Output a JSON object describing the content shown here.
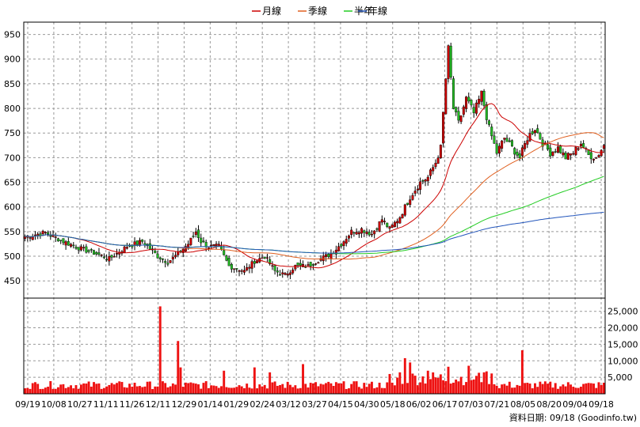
{
  "chart_data": [
    {
      "type": "candlestick",
      "legend": [
        "月線",
        "季線",
        "半年",
        "年線"
      ],
      "legend_placement": "top-center",
      "colors": {
        "month": "#cc0000",
        "quarter": "#e06020",
        "half": "#22cc22",
        "year": "#2255bb",
        "up": "#cc0000",
        "down": "#22bb22"
      },
      "x_tick_labels": [
        "09/19",
        "10/08",
        "10/27",
        "11/11",
        "11/26",
        "12/11",
        "12/29",
        "01/14",
        "01/29",
        "02/24",
        "03/12",
        "03/27",
        "04/15",
        "04/30",
        "05/18",
        "06/02",
        "06/17",
        "07/03",
        "07/21",
        "08/05",
        "08/20",
        "09/04",
        "09/18"
      ],
      "y_ticks": [
        450,
        500,
        550,
        600,
        650,
        700,
        750,
        800,
        850,
        900,
        950
      ],
      "ylim": [
        415,
        975
      ],
      "grid": true,
      "price_anchors": [
        {
          "i": 0,
          "c": 540
        },
        {
          "i": 8,
          "c": 548
        },
        {
          "i": 15,
          "c": 530
        },
        {
          "i": 22,
          "c": 515
        },
        {
          "i": 28,
          "c": 505
        },
        {
          "i": 33,
          "c": 495
        },
        {
          "i": 40,
          "c": 520
        },
        {
          "i": 46,
          "c": 530
        },
        {
          "i": 52,
          "c": 500
        },
        {
          "i": 56,
          "c": 488
        },
        {
          "i": 60,
          "c": 505
        },
        {
          "i": 64,
          "c": 525
        },
        {
          "i": 67,
          "c": 550
        },
        {
          "i": 69,
          "c": 530
        },
        {
          "i": 72,
          "c": 520
        },
        {
          "i": 76,
          "c": 520
        },
        {
          "i": 80,
          "c": 480
        },
        {
          "i": 86,
          "c": 470
        },
        {
          "i": 90,
          "c": 490
        },
        {
          "i": 94,
          "c": 500
        },
        {
          "i": 98,
          "c": 470
        },
        {
          "i": 102,
          "c": 462
        },
        {
          "i": 106,
          "c": 480
        },
        {
          "i": 111,
          "c": 480
        },
        {
          "i": 116,
          "c": 495
        },
        {
          "i": 120,
          "c": 505
        },
        {
          "i": 124,
          "c": 525
        },
        {
          "i": 128,
          "c": 550
        },
        {
          "i": 132,
          "c": 555
        },
        {
          "i": 136,
          "c": 545
        },
        {
          "i": 140,
          "c": 575
        },
        {
          "i": 143,
          "c": 555
        },
        {
          "i": 147,
          "c": 580
        },
        {
          "i": 151,
          "c": 620
        },
        {
          "i": 155,
          "c": 650
        },
        {
          "i": 158,
          "c": 660
        },
        {
          "i": 161,
          "c": 690
        },
        {
          "i": 163,
          "c": 720
        },
        {
          "i": 165,
          "c": 860
        },
        {
          "i": 166,
          "c": 920
        },
        {
          "i": 168,
          "c": 800
        },
        {
          "i": 170,
          "c": 770
        },
        {
          "i": 173,
          "c": 820
        },
        {
          "i": 176,
          "c": 790
        },
        {
          "i": 179,
          "c": 830
        },
        {
          "i": 182,
          "c": 760
        },
        {
          "i": 185,
          "c": 710
        },
        {
          "i": 188,
          "c": 740
        },
        {
          "i": 191,
          "c": 720
        },
        {
          "i": 194,
          "c": 700
        },
        {
          "i": 197,
          "c": 740
        },
        {
          "i": 200,
          "c": 760
        },
        {
          "i": 203,
          "c": 730
        },
        {
          "i": 206,
          "c": 710
        },
        {
          "i": 209,
          "c": 720
        },
        {
          "i": 212,
          "c": 700
        },
        {
          "i": 215,
          "c": 710
        },
        {
          "i": 218,
          "c": 730
        },
        {
          "i": 221,
          "c": 705
        },
        {
          "i": 224,
          "c": 700
        },
        {
          "i": 227,
          "c": 725
        }
      ],
      "volume": {
        "y_ticks": [
          5000,
          10000,
          15000,
          20000,
          25000
        ],
        "y_tick_labels": [
          "5,000",
          "10,000",
          "15,000",
          "20,000",
          "25,000"
        ],
        "ylim": [
          0,
          29000
        ],
        "spikes": [
          [
            53,
            26500
          ],
          [
            60,
            16000
          ],
          [
            61,
            8000
          ],
          [
            78,
            7000
          ],
          [
            90,
            8000
          ],
          [
            96,
            6500
          ],
          [
            109,
            9000
          ],
          [
            143,
            6000
          ],
          [
            147,
            6500
          ],
          [
            149,
            10800
          ],
          [
            151,
            9500
          ],
          [
            158,
            7000
          ],
          [
            166,
            8200
          ],
          [
            174,
            8500
          ],
          [
            180,
            6500
          ],
          [
            195,
            13200
          ]
        ],
        "base": 2400
      },
      "source_text": "資料日期: 09/18 (Goodinfo.tw)"
    }
  ]
}
